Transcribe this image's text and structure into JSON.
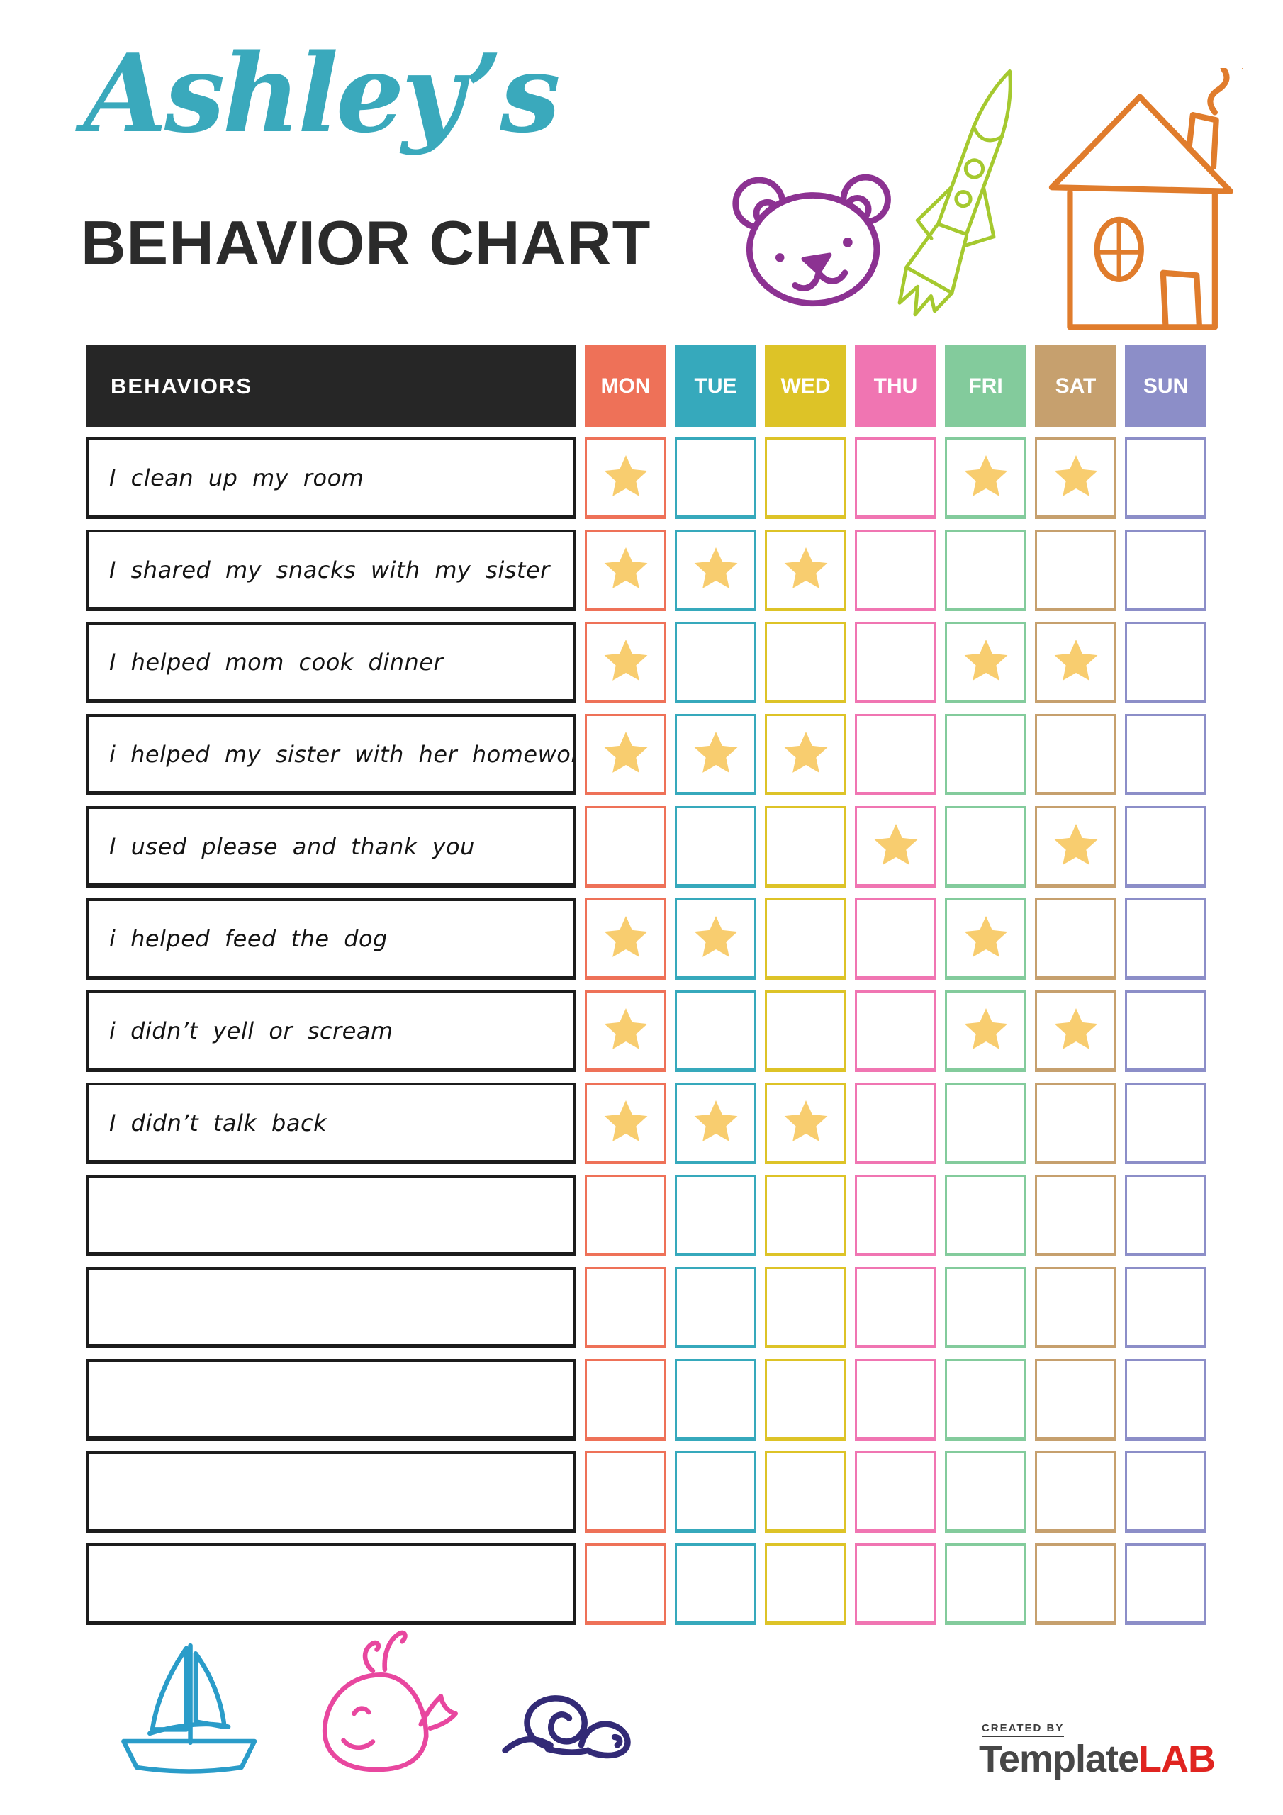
{
  "header": {
    "name": "Ashley’s",
    "title": "BEHAVIOR CHART"
  },
  "colors": {
    "accent_teal": "#3aa9bc",
    "header_bg": "#262626",
    "row_border": "#1c1c1c",
    "star": "#f8cd6f",
    "brand_gray": "#474747",
    "brand_red": "#e02420",
    "bear_purple": "#8c3292",
    "rocket_lime": "#a5c92f",
    "house_orange": "#e07c2c",
    "boat_blue": "#2a9cc9",
    "whale_pink": "#e8479f",
    "snail_navy": "#322a76"
  },
  "table": {
    "behaviors_header": "BEHAVIORS",
    "days": [
      {
        "label": "MON",
        "color": "#ee7158"
      },
      {
        "label": "TUE",
        "color": "#36a9bc"
      },
      {
        "label": "WED",
        "color": "#ddc327"
      },
      {
        "label": "THU",
        "color": "#f075b2"
      },
      {
        "label": "FRI",
        "color": "#83cb9c"
      },
      {
        "label": "SAT",
        "color": "#c6a06e"
      },
      {
        "label": "SUN",
        "color": "#8c8ec8"
      }
    ],
    "rows": [
      {
        "label": "I clean up my room",
        "stars": [
          "MON",
          "FRI",
          "SAT"
        ]
      },
      {
        "label": "I shared my snacks with my sister",
        "stars": [
          "MON",
          "TUE",
          "WED"
        ]
      },
      {
        "label": "I helped mom cook dinner",
        "stars": [
          "MON",
          "FRI",
          "SAT"
        ]
      },
      {
        "label": "i helped my sister with her homework",
        "stars": [
          "MON",
          "TUE",
          "WED"
        ]
      },
      {
        "label": "I used please and thank you",
        "stars": [
          "THU",
          "SAT"
        ]
      },
      {
        "label": "i helped feed the dog",
        "stars": [
          "MON",
          "TUE",
          "FRI"
        ]
      },
      {
        "label": "i didn’t yell or scream",
        "stars": [
          "MON",
          "FRI",
          "SAT"
        ]
      },
      {
        "label": "I didn’t talk back",
        "stars": [
          "MON",
          "TUE",
          "WED"
        ]
      },
      {
        "label": "",
        "stars": []
      },
      {
        "label": "",
        "stars": []
      },
      {
        "label": "",
        "stars": []
      },
      {
        "label": "",
        "stars": []
      },
      {
        "label": "",
        "stars": []
      }
    ]
  },
  "icons": {
    "top_doodles": [
      "bear-doodle",
      "rocket-doodle",
      "house-doodle"
    ],
    "bottom_doodles": [
      "sailboat-doodle",
      "whale-doodle",
      "snail-doodle"
    ],
    "cell_marker": "star-icon"
  },
  "footer": {
    "created_by": "CREATED BY",
    "brand_first": "Template",
    "brand_second": "LAB"
  }
}
